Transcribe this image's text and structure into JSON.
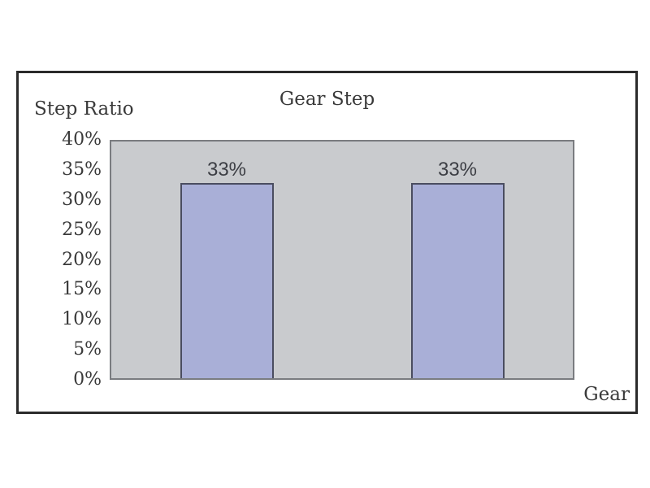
{
  "chart": {
    "colors": {
      "text": "#3a3a3a",
      "page_background": "#ffffff",
      "plot_background": "#c9cbce",
      "plot_border": "#7a7c80",
      "bar_fill": "#a9afd7",
      "bar_border": "#4a4d60",
      "frame_border": "#2b2b2b",
      "data_label_text": "#3c3e44"
    }
  },
  "chart_data": {
    "type": "bar",
    "title": "Gear Step",
    "ylabel": "Step Ratio",
    "xlabel": "Gear",
    "categories": [
      "",
      ""
    ],
    "values": [
      33,
      33
    ],
    "data_labels": [
      "33%",
      "33%"
    ],
    "ylim": [
      0,
      40
    ],
    "ytick_step": 5,
    "ytick_labels": [
      "40%",
      "35%",
      "30%",
      "25%",
      "20%",
      "15%",
      "10%",
      "5%",
      "0%"
    ],
    "grid": false,
    "legend": false,
    "legend_position": "none"
  }
}
